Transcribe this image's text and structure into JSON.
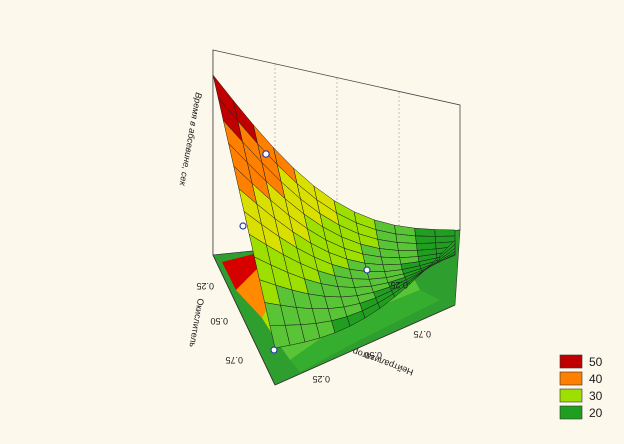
{
  "chart_data": {
    "type": "surface3d",
    "zlabel": "Время в абсевине, сек",
    "xlabel": "Нейтрализатор",
    "ylabel": "Окислитель",
    "x_ticks": [
      "0.25",
      "0.50",
      "0.75"
    ],
    "y_ticks": [
      "0.25",
      "0.50",
      "0.75"
    ],
    "legend": [
      {
        "label": "50",
        "color": "#c00000"
      },
      {
        "label": "40",
        "color": "#ff7f00"
      },
      {
        "label": "30",
        "color": "#9de000"
      },
      {
        "label": "20",
        "color": "#1f9e1f"
      }
    ],
    "zlim": [
      15,
      55
    ],
    "grid": true,
    "legend_position": "bottom-right"
  }
}
